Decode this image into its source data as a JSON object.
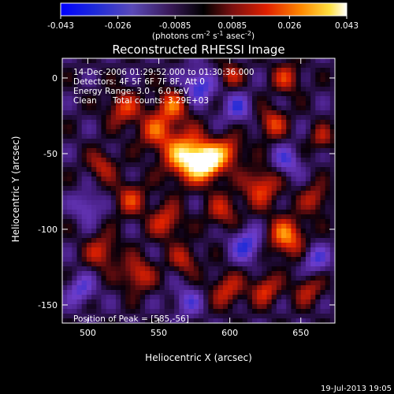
{
  "chart_data": {
    "type": "heatmap",
    "title": "Reconstructed RHESSI Image",
    "xlabel": "Heliocentric X (arcsec)",
    "ylabel": "Heliocentric Y (arcsec)",
    "xlim": [
      482,
      674
    ],
    "ylim": [
      -162,
      13
    ],
    "xticks": [
      500,
      550,
      600,
      650
    ],
    "yticks": [
      0,
      -50,
      -100,
      -150
    ],
    "colorbar": {
      "min": -0.043,
      "max": 0.043,
      "ticks": [
        "-0.043",
        "-0.026",
        "-0.0085",
        "0.0085",
        "0.026",
        "0.043"
      ],
      "label_prefix": "(photons cm",
      "label_exp1": "-2",
      "label_mid": " s",
      "label_exp2": "-1",
      "label_mid2": " asec",
      "label_exp3": "-2",
      "label_suffix": ")"
    },
    "annotations": {
      "time_range": "14-Dec-2006 01:29:52.000 to 01:30:36.000",
      "detectors": "Detectors: 4F 5F 6F 7F 8F, Att 0",
      "energy": "Energy Range: 3.0 - 6.0 keV",
      "clean": "Clean",
      "total_counts": "Total counts: 3.29E+03",
      "peak": "Position of Peak = [585,-56]"
    },
    "peak": {
      "x": 585,
      "y": -56
    },
    "sources": [
      {
        "x": 570,
        "y": -52,
        "amp": 1.0,
        "sigma": 11
      },
      {
        "x": 585,
        "y": -56,
        "amp": 0.95,
        "sigma": 8
      },
      {
        "x": 600,
        "y": -48,
        "amp": 0.55,
        "sigma": 7
      },
      {
        "x": 548,
        "y": -35,
        "amp": 0.55,
        "sigma": 9
      },
      {
        "x": 525,
        "y": -20,
        "amp": 0.55,
        "sigma": 8
      },
      {
        "x": 560,
        "y": -18,
        "amp": 0.6,
        "sigma": 8
      },
      {
        "x": 510,
        "y": -58,
        "amp": 0.45,
        "sigma": 7
      },
      {
        "x": 530,
        "y": -80,
        "amp": 0.5,
        "sigma": 8
      },
      {
        "x": 555,
        "y": -95,
        "amp": 0.55,
        "sigma": 8
      },
      {
        "x": 595,
        "y": -88,
        "amp": 0.45,
        "sigma": 8
      },
      {
        "x": 622,
        "y": -72,
        "amp": 0.6,
        "sigma": 9
      },
      {
        "x": 640,
        "y": -105,
        "amp": 0.75,
        "sigma": 9
      },
      {
        "x": 660,
        "y": -80,
        "amp": 0.45,
        "sigma": 7
      },
      {
        "x": 630,
        "y": -30,
        "amp": 0.55,
        "sigma": 7
      },
      {
        "x": 640,
        "y": 0,
        "amp": 0.5,
        "sigma": 7
      },
      {
        "x": 600,
        "y": 2,
        "amp": 0.45,
        "sigma": 6
      },
      {
        "x": 510,
        "y": -115,
        "amp": 0.5,
        "sigma": 8
      },
      {
        "x": 535,
        "y": -130,
        "amp": 0.55,
        "sigma": 8
      },
      {
        "x": 568,
        "y": -120,
        "amp": 0.45,
        "sigma": 7
      },
      {
        "x": 598,
        "y": -140,
        "amp": 0.5,
        "sigma": 8
      },
      {
        "x": 625,
        "y": -140,
        "amp": 0.55,
        "sigma": 7
      },
      {
        "x": 655,
        "y": -140,
        "amp": 0.45,
        "sigma": 7
      },
      {
        "x": 665,
        "y": -40,
        "amp": 0.4,
        "sigma": 6
      },
      {
        "x": 612,
        "y": -110,
        "amp": -0.55,
        "sigma": 8
      },
      {
        "x": 578,
        "y": -5,
        "amp": -0.6,
        "sigma": 8
      },
      {
        "x": 605,
        "y": -20,
        "amp": -0.45,
        "sigma": 7
      },
      {
        "x": 640,
        "y": -55,
        "amp": -0.45,
        "sigma": 7
      },
      {
        "x": 495,
        "y": -140,
        "amp": -0.45,
        "sigma": 7
      },
      {
        "x": 570,
        "y": -148,
        "amp": -0.4,
        "sigma": 7
      },
      {
        "x": 660,
        "y": -120,
        "amp": -0.45,
        "sigma": 7
      },
      {
        "x": 500,
        "y": -85,
        "amp": -0.4,
        "sigma": 7
      }
    ]
  },
  "footer": {
    "timestamp": "19-Jul-2013 19:05"
  }
}
